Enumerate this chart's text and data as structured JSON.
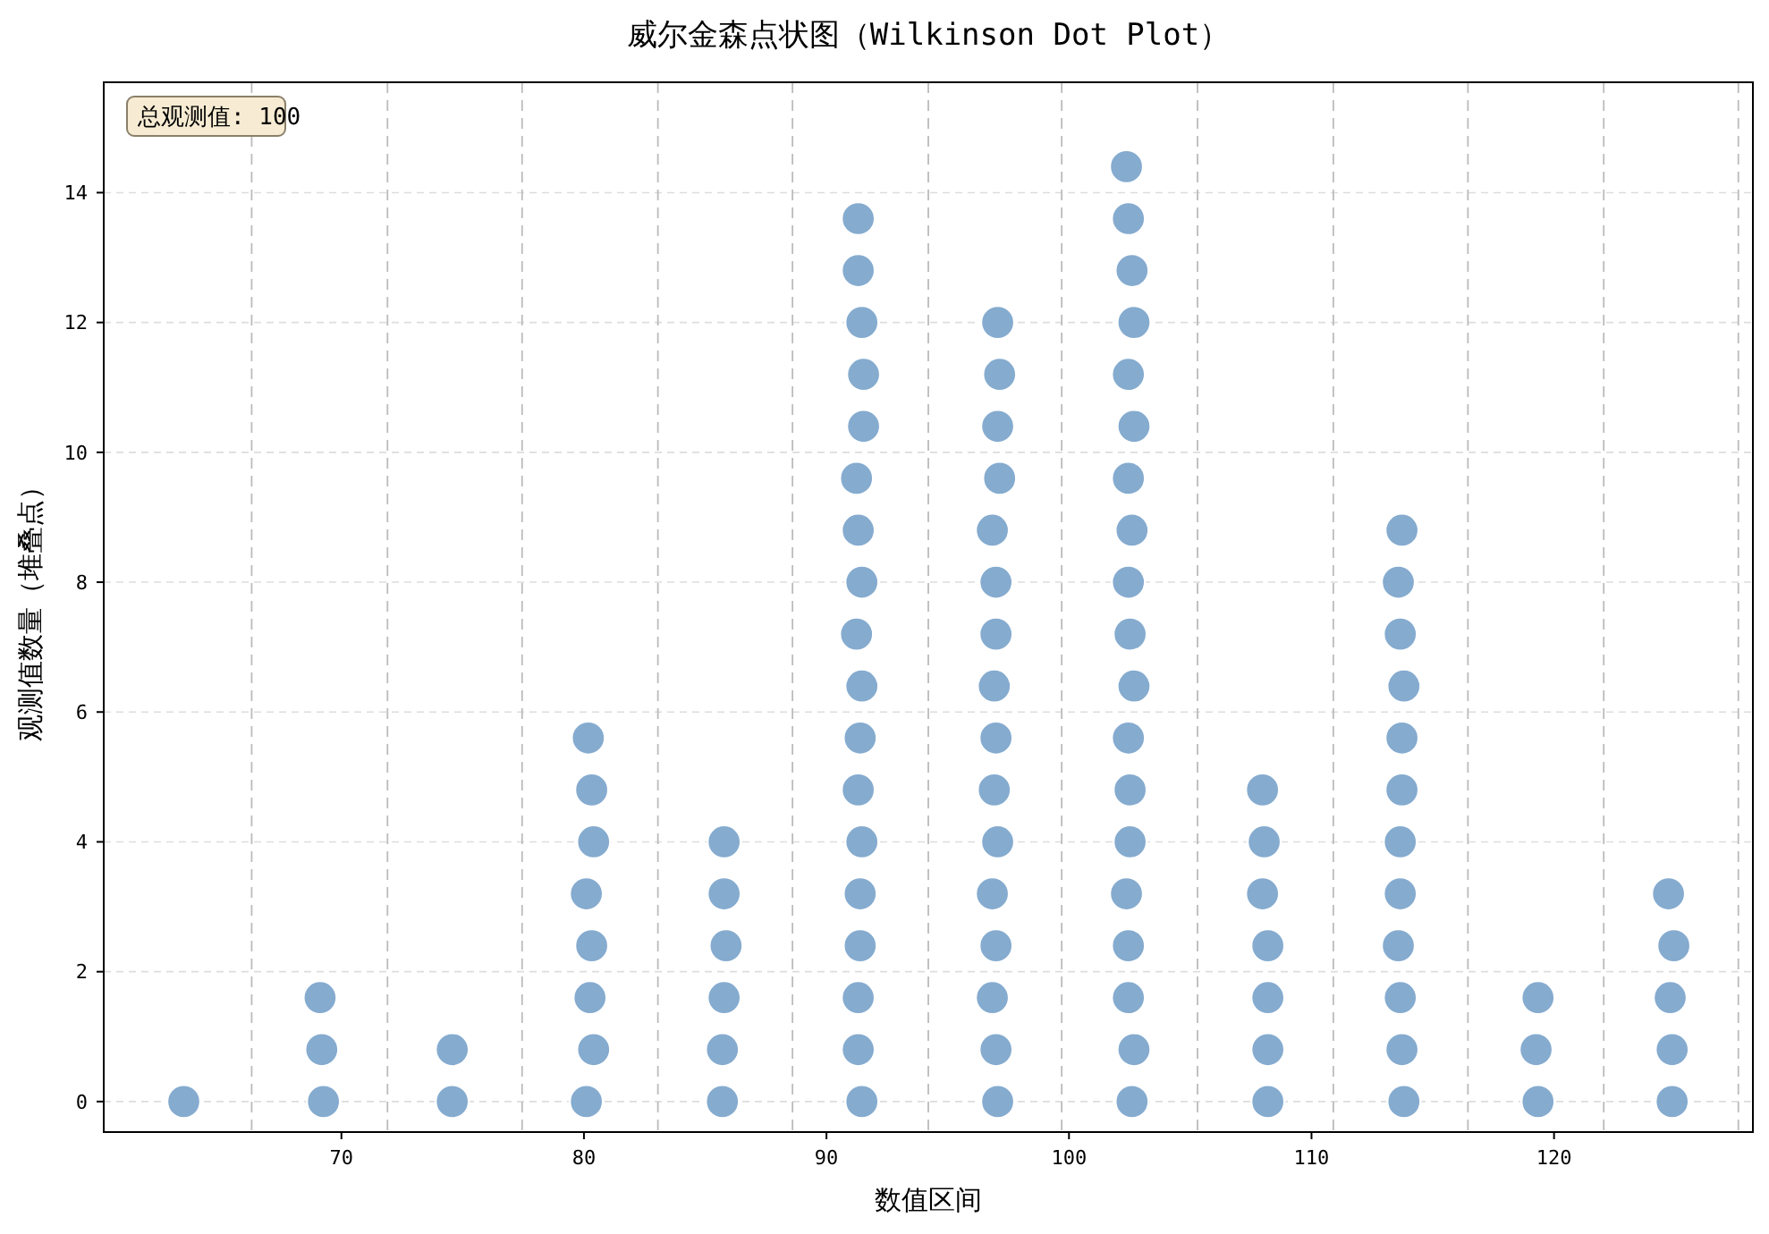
{
  "chart_data": {
    "type": "scatter",
    "title": "威尔金森点状图（Wilkinson Dot Plot）",
    "xlabel": "数值区间",
    "ylabel": "观测值数量（堆叠点）",
    "annotations": [
      "总观测值: 100"
    ],
    "xlim": [
      60.2,
      128.2
    ],
    "xticks": [
      70,
      80,
      90,
      100,
      110,
      120
    ],
    "ylim": [
      -0.47,
      15.7
    ],
    "yticks": [
      0,
      2,
      4,
      6,
      8,
      10,
      12,
      14
    ],
    "grid": "y",
    "marker": "circle",
    "ref_lines": [
      {
        "axis": "x",
        "value": 66.3,
        "line_style": "dashed"
      },
      {
        "axis": "x",
        "value": 71.9,
        "line_style": "dashed"
      },
      {
        "axis": "x",
        "value": 77.45,
        "line_style": "dashed"
      },
      {
        "axis": "x",
        "value": 83.05,
        "line_style": "dashed"
      },
      {
        "axis": "x",
        "value": 88.6,
        "line_style": "dashed"
      },
      {
        "axis": "x",
        "value": 94.2,
        "line_style": "dashed"
      },
      {
        "axis": "x",
        "value": 99.7,
        "line_style": "dashed"
      },
      {
        "axis": "x",
        "value": 105.3,
        "line_style": "dashed"
      },
      {
        "axis": "x",
        "value": 110.9,
        "line_style": "dashed"
      },
      {
        "axis": "x",
        "value": 116.45,
        "line_style": "dashed"
      },
      {
        "axis": "x",
        "value": 122.05,
        "line_style": "dashed"
      },
      {
        "axis": "x",
        "value": 127.6,
        "line_style": "dashed"
      }
    ],
    "series": [
      {
        "color": "#7ea6cc",
        "x": [
          63.5,
          69.26,
          69.19,
          69.12,
          74.57,
          74.57,
          80.1,
          80.4,
          80.25,
          80.32,
          80.1,
          80.4,
          80.32,
          80.18,
          85.71,
          85.71,
          85.78,
          85.86,
          85.78,
          85.78,
          91.46,
          91.31,
          91.31,
          91.39,
          91.39,
          91.46,
          91.31,
          91.39,
          91.46,
          91.24,
          91.46,
          91.31,
          91.24,
          91.53,
          91.53,
          91.46,
          91.31,
          91.31,
          97.06,
          96.99,
          96.84,
          96.99,
          96.84,
          97.06,
          96.92,
          96.99,
          96.92,
          96.99,
          96.99,
          96.84,
          97.14,
          97.06,
          97.14,
          97.06,
          102.6,
          102.68,
          102.45,
          102.45,
          102.37,
          102.52,
          102.52,
          102.45,
          102.68,
          102.52,
          102.45,
          102.6,
          102.45,
          102.68,
          102.45,
          102.68,
          102.6,
          102.45,
          102.37,
          108.2,
          108.2,
          108.2,
          108.2,
          107.98,
          108.05,
          107.98,
          113.81,
          113.73,
          113.66,
          113.58,
          113.66,
          113.66,
          113.73,
          113.73,
          113.81,
          113.66,
          113.58,
          113.73,
          119.34,
          119.26,
          119.34,
          124.87,
          124.87,
          124.79,
          124.94,
          124.72
        ],
        "values": [
          0,
          0,
          0.8,
          1.6,
          0,
          0.8,
          0,
          0.8,
          1.6,
          2.4,
          3.2,
          4.0,
          4.8,
          5.6,
          0,
          0.8,
          1.6,
          2.4,
          3.2,
          4.0,
          0,
          0.8,
          1.6,
          2.4,
          3.2,
          4.0,
          4.8,
          5.6,
          6.4,
          7.2,
          8.0,
          8.8,
          9.6,
          10.4,
          11.2,
          12.0,
          12.8,
          13.6,
          0,
          0.8,
          1.6,
          2.4,
          3.2,
          4.0,
          4.8,
          5.6,
          6.4,
          7.2,
          8.0,
          8.8,
          9.6,
          10.4,
          11.2,
          12.0,
          0,
          0.8,
          1.6,
          2.4,
          3.2,
          4.0,
          4.8,
          5.6,
          6.4,
          7.2,
          8.0,
          8.8,
          9.6,
          10.4,
          11.2,
          12.0,
          12.8,
          13.6,
          14.4,
          0,
          0.8,
          1.6,
          2.4,
          3.2,
          4.0,
          4.8,
          0,
          0.8,
          1.6,
          2.4,
          3.2,
          4.0,
          4.8,
          5.6,
          6.4,
          7.2,
          8.0,
          8.8,
          0,
          0.8,
          1.6,
          0,
          0.8,
          1.6,
          2.4,
          3.2
        ]
      }
    ]
  }
}
